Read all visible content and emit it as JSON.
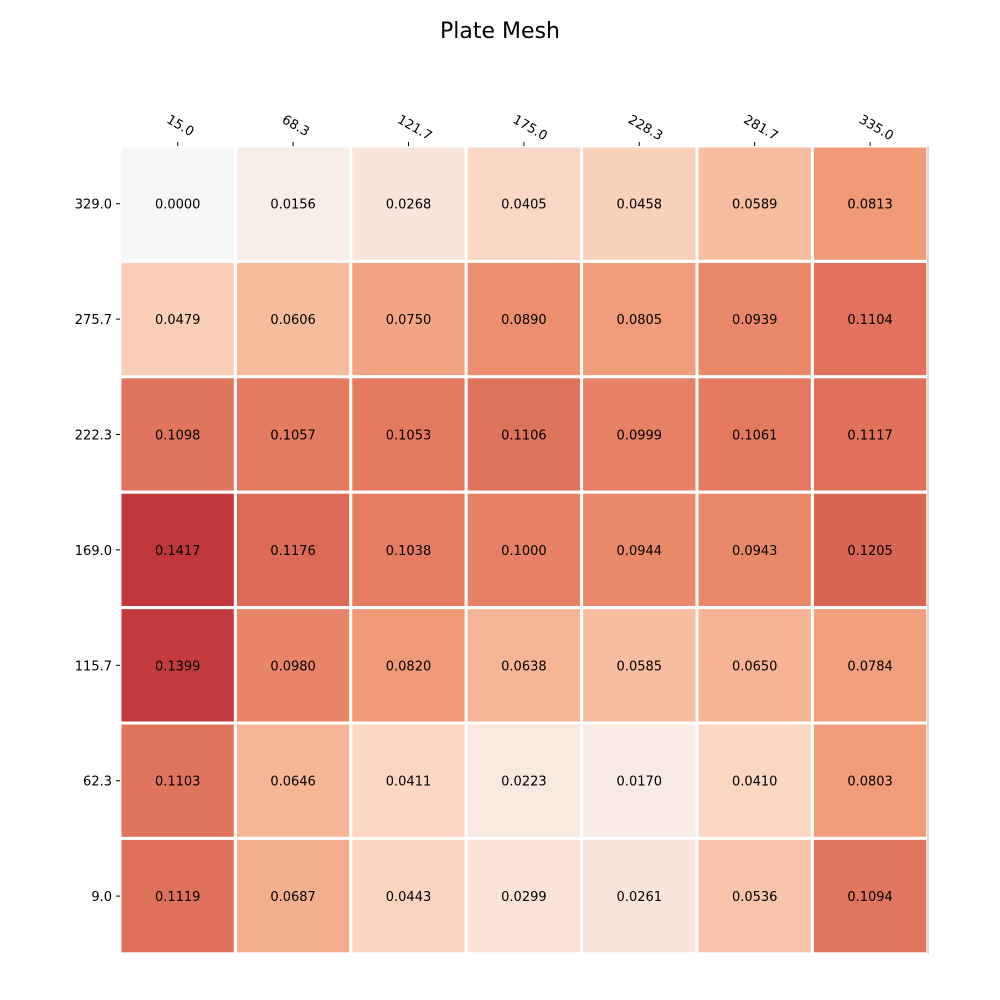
{
  "chart_data": {
    "type": "heatmap",
    "title": "Plate Mesh",
    "x_ticks": [
      "15.0",
      "68.3",
      "121.7",
      "175.0",
      "228.3",
      "281.7",
      "335.0"
    ],
    "y_ticks": [
      "329.0",
      "275.7",
      "222.3",
      "169.0",
      "115.7",
      "62.3",
      "9.0"
    ],
    "values": [
      [
        "0.0000",
        "0.0156",
        "0.0268",
        "0.0405",
        "0.0458",
        "0.0589",
        "0.0813"
      ],
      [
        "0.0479",
        "0.0606",
        "0.0750",
        "0.0890",
        "0.0805",
        "0.0939",
        "0.1104"
      ],
      [
        "0.1098",
        "0.1057",
        "0.1053",
        "0.1106",
        "0.0999",
        "0.1061",
        "0.1117"
      ],
      [
        "0.1417",
        "0.1176",
        "0.1038",
        "0.1000",
        "0.0944",
        "0.0943",
        "0.1205"
      ],
      [
        "0.1399",
        "0.0980",
        "0.0820",
        "0.0638",
        "0.0585",
        "0.0650",
        "0.0784"
      ],
      [
        "0.1103",
        "0.0646",
        "0.0411",
        "0.0223",
        "0.0170",
        "0.0410",
        "0.0803"
      ],
      [
        "0.1119",
        "0.0687",
        "0.0443",
        "0.0299",
        "0.0261",
        "0.0536",
        "0.1094"
      ]
    ],
    "x_axis_position": "top",
    "colormap": "white-to-red",
    "grid": false,
    "legend": "none"
  }
}
